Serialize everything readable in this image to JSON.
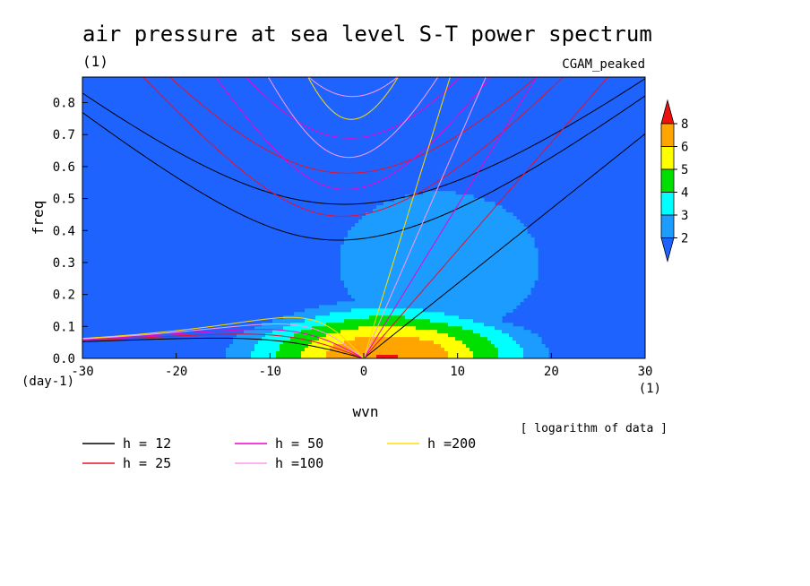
{
  "chart_data": {
    "type": "heatmap",
    "title": "air pressure at sea level S-T power spectrum",
    "title_units": "(1)",
    "dataset_label": "CGAM_peaked",
    "xlabel": "wvn",
    "ylabel": "freq",
    "x_unit_label": "(1)",
    "y_unit_label": "(day-1)",
    "note": "[ logarithm of data ]",
    "xlim": [
      -30,
      30
    ],
    "ylim": [
      0.0,
      0.88
    ],
    "x_ticks": [
      -30,
      -20,
      -10,
      0,
      10,
      20,
      30
    ],
    "x_tick_labels": [
      "-30",
      "-20",
      "-10",
      "0",
      "10",
      "20",
      "30"
    ],
    "y_ticks": [
      0.0,
      0.1,
      0.2,
      0.3,
      0.4,
      0.5,
      0.6,
      0.7,
      0.8
    ],
    "y_tick_labels": [
      "0.0",
      "0.1",
      "0.2",
      "0.3",
      "0.4",
      "0.5",
      "0.6",
      "0.7",
      "0.8"
    ],
    "colorbar": {
      "levels": [
        2,
        3,
        4,
        5,
        6,
        8
      ],
      "labels": [
        "2",
        "3",
        "4",
        "5",
        "6",
        "8"
      ],
      "colors": [
        "#1f63ff",
        "#1c9cff",
        "#00ffff",
        "#00e000",
        "#ffff00",
        "#ffa500",
        "#ee1111"
      ]
    },
    "field": {
      "description_peak": {
        "wvn": 2.5,
        "freq": 0.0,
        "log_value": 8.5
      },
      "background_log_value": 1.8
    },
    "dispersion_curves": [
      {
        "name": "h = 12",
        "h": 12,
        "color": "#000000"
      },
      {
        "name": "h = 25",
        "h": 25,
        "color": "#e8102a"
      },
      {
        "name": "h = 50",
        "h": 50,
        "color": "#ee00cc"
      },
      {
        "name": "h =100",
        "h": 100,
        "color": "#ff99ee"
      },
      {
        "name": "h =200",
        "h": 200,
        "color": "#ffdd00"
      }
    ],
    "grid": false
  }
}
